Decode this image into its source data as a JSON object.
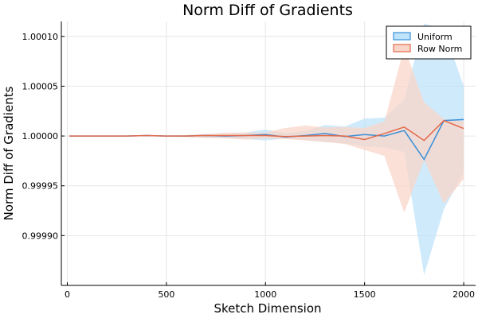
{
  "chart_data": {
    "type": "line",
    "title": "Norm Diff of Gradients",
    "xlabel": "Sketch Dimension",
    "ylabel": "Norm Diff of Gradients",
    "xlim": [
      -30,
      2060
    ],
    "ylim": [
      0.99985,
      1.000115
    ],
    "xticks": [
      0,
      500,
      1000,
      1500,
      2000
    ],
    "xtick_labels": [
      "0",
      "500",
      "1000",
      "1500",
      "2000"
    ],
    "yticks": [
      0.9999,
      0.99995,
      1.0,
      1.00005,
      1.0001
    ],
    "ytick_labels": [
      "0.99990",
      "0.99995",
      "1.00000",
      "1.00005",
      "1.00010"
    ],
    "grid": true,
    "legend_position": "top-right",
    "x": [
      10,
      100,
      200,
      300,
      400,
      500,
      600,
      700,
      800,
      900,
      1000,
      1100,
      1200,
      1300,
      1400,
      1500,
      1600,
      1700,
      1800,
      1900,
      2000
    ],
    "series": [
      {
        "name": "Uniform",
        "color": "#3a8fd6",
        "fill": "#bfe3fa",
        "mean": [
          1.0,
          1.0,
          1.0,
          1.0,
          1.0000005,
          1.0,
          1.0,
          1.0000005,
          1.0,
          1.0000005,
          1.0000015,
          0.999999,
          1.0000005,
          1.0000025,
          0.9999995,
          1.0000015,
          1.0,
          1.0000055,
          0.9999765,
          1.0000155,
          1.0000165
        ],
        "lower": [
          0.99999995,
          0.99999995,
          0.99999995,
          0.99999995,
          0.99999995,
          0.9999995,
          0.999999,
          0.999998,
          0.999998,
          0.999997,
          0.9999955,
          0.9999975,
          0.999996,
          0.999994,
          0.9999925,
          0.9999895,
          0.9999885,
          0.999984,
          0.9998605,
          0.9999265,
          0.999963
        ],
        "upper": [
          1.00000005,
          1.00000005,
          1.00000005,
          1.00000005,
          1.00000005,
          1.0000005,
          1.000001,
          1.000002,
          1.000002,
          1.0000035,
          1.0000065,
          1.000003,
          1.000005,
          1.000011,
          1.0000095,
          1.0000175,
          1.0000185,
          1.000037,
          1.000113,
          1.000107,
          1.00005
        ]
      },
      {
        "name": "Row Norm",
        "color": "#e2694a",
        "fill": "#f9d5c9",
        "mean": [
          1.0,
          1.0,
          1.0,
          1.0,
          1.0000005,
          1.0,
          1.0,
          1.0000005,
          1.0000005,
          1.0000005,
          1.0000005,
          0.9999995,
          1.0,
          1.0000005,
          1.0,
          0.9999965,
          1.0000025,
          1.000009,
          0.9999955,
          1.0000155,
          1.0000075
        ],
        "lower": [
          0.99999995,
          0.99999995,
          0.99999995,
          0.99999995,
          0.99999995,
          0.9999995,
          0.999999,
          0.999998,
          0.9999975,
          0.9999965,
          0.9999975,
          0.999997,
          0.9999955,
          0.999994,
          0.999992,
          0.999986,
          0.99998,
          0.999923,
          0.999976,
          0.999932,
          0.999957
        ],
        "upper": [
          1.00000005,
          1.00000005,
          1.00000005,
          1.00000005,
          1.00000005,
          1.0000005,
          1.000001,
          1.000002,
          1.0000035,
          1.0000035,
          1.0000035,
          1.000008,
          1.0000105,
          1.0000085,
          1.000009,
          1.000008,
          1.0000145,
          1.000089,
          1.000034,
          1.000017,
          1.000015
        ]
      }
    ]
  }
}
